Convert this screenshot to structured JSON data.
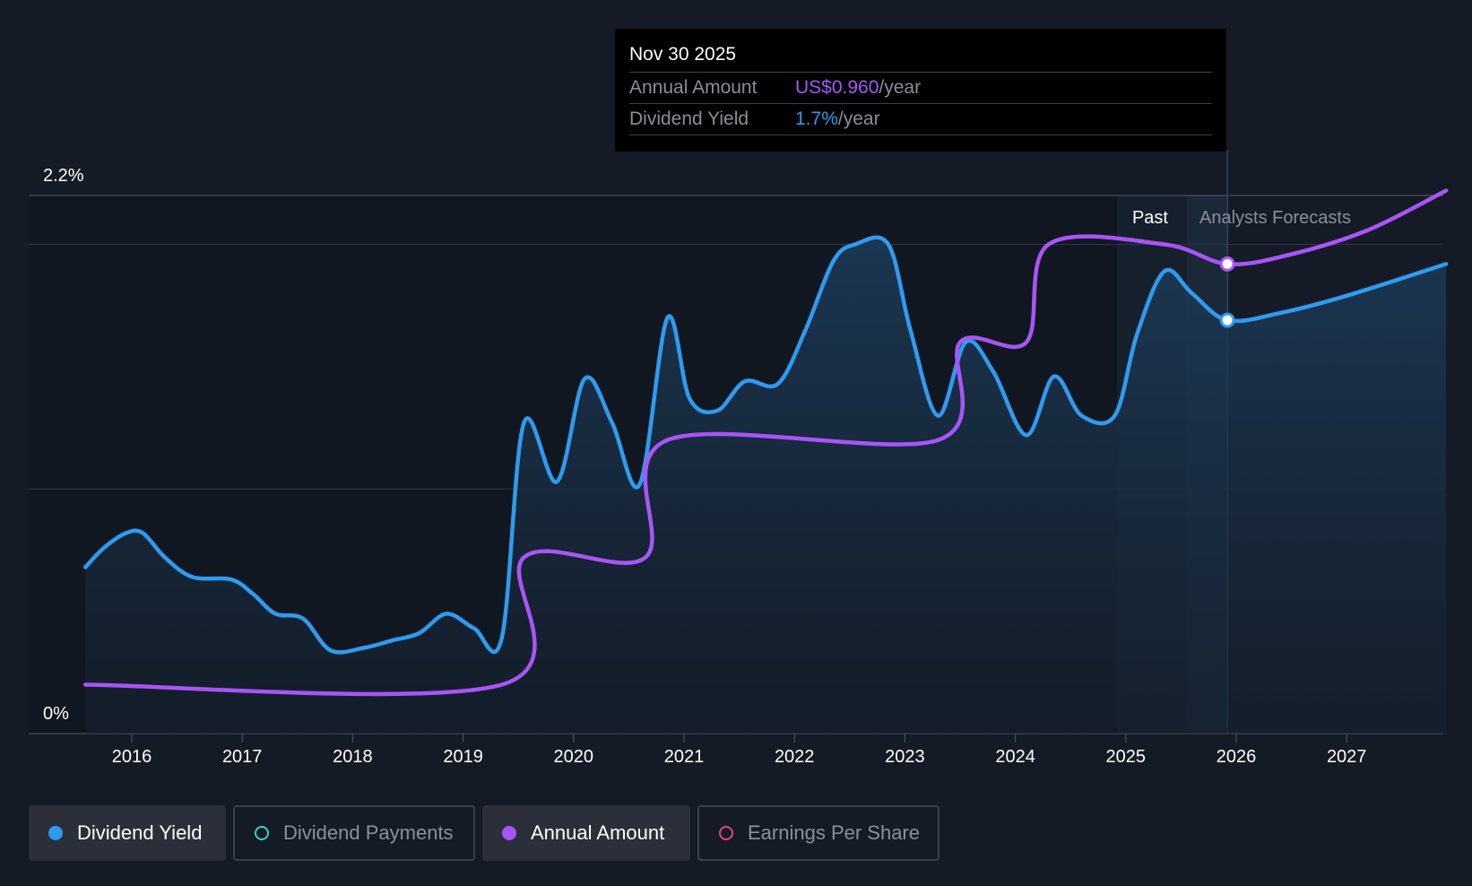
{
  "chart_data": {
    "type": "line",
    "title": "",
    "xlabel": "",
    "ylabel": "",
    "ylim": [
      0,
      2.2
    ],
    "y_axis_labels": [
      "2.2%",
      "0%"
    ],
    "x_ticks": [
      "2016",
      "2017",
      "2018",
      "2019",
      "2020",
      "2021",
      "2022",
      "2023",
      "2024",
      "2025",
      "2026",
      "2027"
    ],
    "grid": true,
    "region_labels": {
      "past": "Past",
      "forecast": "Analysts Forecasts"
    },
    "series": [
      {
        "name": "Dividend Yield",
        "color": "#2e9bf0",
        "unit": "%",
        "points": [
          [
            2015.58,
            0.68
          ],
          [
            2015.75,
            0.76
          ],
          [
            2015.95,
            0.82
          ],
          [
            2016.1,
            0.82
          ],
          [
            2016.3,
            0.72
          ],
          [
            2016.55,
            0.64
          ],
          [
            2016.9,
            0.63
          ],
          [
            2017.1,
            0.57
          ],
          [
            2017.3,
            0.49
          ],
          [
            2017.55,
            0.47
          ],
          [
            2017.8,
            0.34
          ],
          [
            2018.1,
            0.35
          ],
          [
            2018.35,
            0.38
          ],
          [
            2018.6,
            0.41
          ],
          [
            2018.85,
            0.49
          ],
          [
            2019.1,
            0.43
          ],
          [
            2019.35,
            0.39
          ],
          [
            2019.55,
            1.27
          ],
          [
            2019.85,
            1.03
          ],
          [
            2020.1,
            1.45
          ],
          [
            2020.35,
            1.27
          ],
          [
            2020.6,
            1.02
          ],
          [
            2020.85,
            1.7
          ],
          [
            2021.05,
            1.37
          ],
          [
            2021.3,
            1.32
          ],
          [
            2021.55,
            1.44
          ],
          [
            2021.85,
            1.43
          ],
          [
            2022.1,
            1.65
          ],
          [
            2022.35,
            1.93
          ],
          [
            2022.55,
            2.0
          ],
          [
            2022.85,
            2.0
          ],
          [
            2023.05,
            1.65
          ],
          [
            2023.3,
            1.3
          ],
          [
            2023.55,
            1.6
          ],
          [
            2023.8,
            1.48
          ],
          [
            2024.1,
            1.22
          ],
          [
            2024.35,
            1.46
          ],
          [
            2024.6,
            1.3
          ],
          [
            2024.9,
            1.3
          ],
          [
            2025.1,
            1.63
          ],
          [
            2025.35,
            1.89
          ],
          [
            2025.6,
            1.8
          ],
          [
            2025.92,
            1.69
          ],
          [
            2026.4,
            1.72
          ],
          [
            2027.0,
            1.79
          ],
          [
            2027.9,
            1.92
          ]
        ]
      },
      {
        "name": "Annual Amount",
        "color": "#a855f7",
        "unit": "US$",
        "points": [
          [
            2015.58,
            0.2
          ],
          [
            2019.35,
            0.2
          ],
          [
            2019.55,
            0.72
          ],
          [
            2020.65,
            0.72
          ],
          [
            2020.85,
            1.2
          ],
          [
            2023.3,
            1.2
          ],
          [
            2023.5,
            1.6
          ],
          [
            2024.1,
            1.6
          ],
          [
            2024.3,
            2.0
          ],
          [
            2025.35,
            2.0
          ],
          [
            2025.92,
            1.92
          ],
          [
            2026.5,
            1.96
          ],
          [
            2027.2,
            2.06
          ],
          [
            2027.9,
            2.22
          ]
        ]
      }
    ],
    "highlight": {
      "x": 2025.92,
      "date": "Nov 30 2025"
    }
  },
  "tooltip": {
    "date": "Nov 30 2025",
    "rows": [
      {
        "label": "Annual Amount",
        "value": "US$0.960",
        "unit": "/year"
      },
      {
        "label": "Dividend Yield",
        "value": "1.7%",
        "unit": "/year"
      }
    ]
  },
  "legend": [
    {
      "label": "Dividend Yield",
      "color": "#2e9bf0",
      "active": true
    },
    {
      "label": "Dividend Payments",
      "color": "#3ad4c0",
      "active": false
    },
    {
      "label": "Annual Amount",
      "color": "#a855f7",
      "active": true
    },
    {
      "label": "Earnings Per Share",
      "color": "#e0457b",
      "active": false
    }
  ]
}
